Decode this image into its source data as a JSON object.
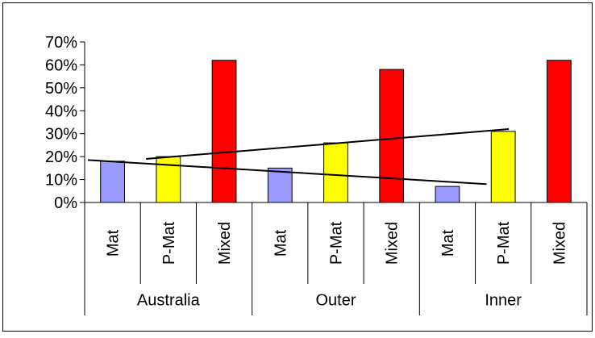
{
  "chart_data": {
    "type": "bar",
    "groups": [
      {
        "label": "Australia",
        "bars": [
          {
            "category": "Mat",
            "value": 18,
            "color": "#9999ff"
          },
          {
            "category": "P-Mat",
            "value": 20,
            "color": "#ffff00"
          },
          {
            "category": "Mixed",
            "value": 62,
            "color": "#ff0000"
          }
        ]
      },
      {
        "label": "Outer",
        "bars": [
          {
            "category": "Mat",
            "value": 15,
            "color": "#9999ff"
          },
          {
            "category": "P-Mat",
            "value": 26,
            "color": "#ffff00"
          },
          {
            "category": "Mixed",
            "value": 58,
            "color": "#ff0000"
          }
        ]
      },
      {
        "label": "Inner",
        "bars": [
          {
            "category": "Mat",
            "value": 7,
            "color": "#9999ff"
          },
          {
            "category": "P-Mat",
            "value": 31,
            "color": "#ffff00"
          },
          {
            "category": "Mixed",
            "value": 62,
            "color": "#ff0000"
          }
        ]
      }
    ],
    "y_ticks": [
      "0%",
      "10%",
      "20%",
      "30%",
      "40%",
      "50%",
      "60%",
      "70%"
    ],
    "ylim": [
      0,
      70
    ],
    "trendlines": [
      {
        "series": "Mat",
        "start": 18.5,
        "end": 8.0
      },
      {
        "series": "P-Mat",
        "start": 19.0,
        "end": 32.0
      }
    ],
    "title": "",
    "xlabel": "",
    "ylabel": "",
    "legend": "none",
    "grid": "none"
  }
}
